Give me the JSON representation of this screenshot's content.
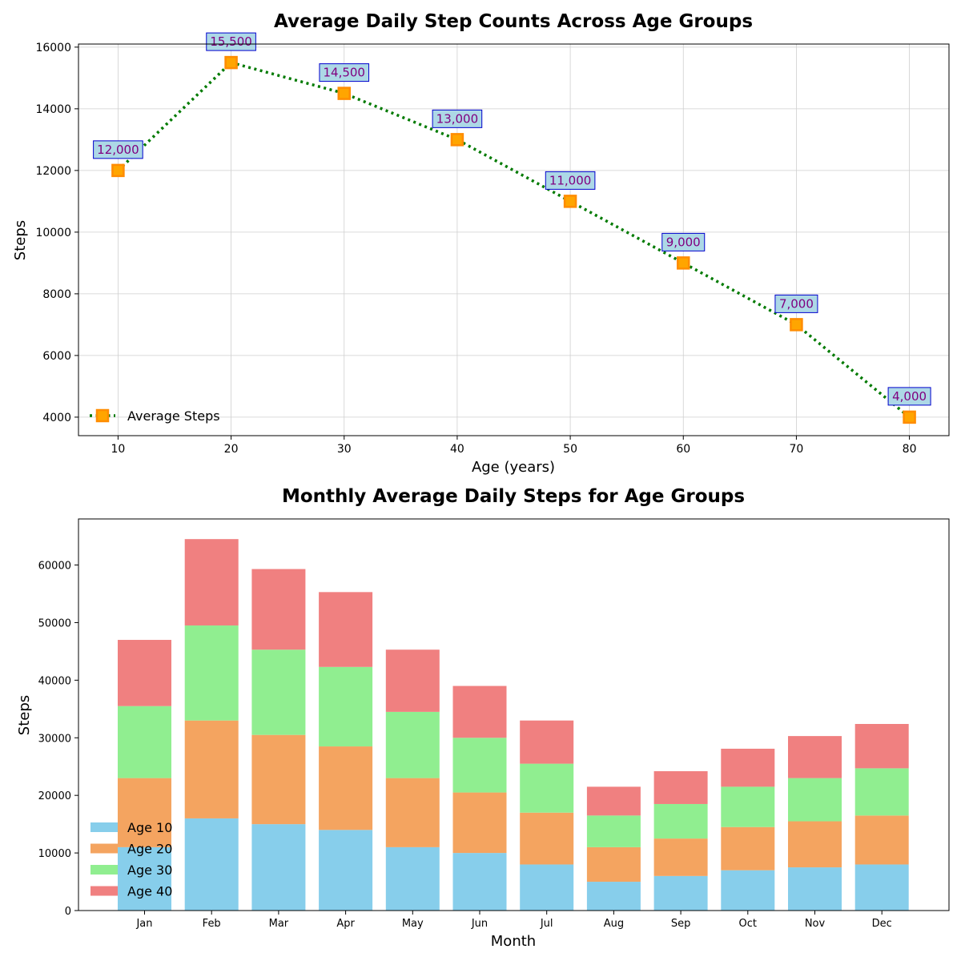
{
  "chart_data": [
    {
      "type": "line",
      "title": "Average Daily Step Counts Across Age Groups",
      "xlabel": "Age (years)",
      "ylabel": "Steps",
      "x": [
        10,
        20,
        30,
        40,
        50,
        60,
        70,
        80
      ],
      "series": [
        {
          "name": "Average Steps",
          "values": [
            12000,
            15500,
            14500,
            13000,
            11000,
            9000,
            7000,
            4000
          ],
          "line_color": "#007a00",
          "marker_color": "#ff8c00"
        }
      ],
      "data_labels": [
        "12,000",
        "15,500",
        "14,500",
        "13,000",
        "11,000",
        "9,000",
        "7,000",
        "4,000"
      ],
      "xlim": [
        6.5,
        83.5
      ],
      "ylim": [
        3400,
        16100
      ],
      "xticks": [
        10,
        20,
        30,
        40,
        50,
        60,
        70,
        80
      ],
      "yticks": [
        4000,
        6000,
        8000,
        10000,
        12000,
        14000,
        16000
      ],
      "grid": true,
      "legend_position": "lower-left",
      "label_box_fill": "#add8e6",
      "label_box_edge": "#0000cd",
      "label_text_color": "#800080"
    },
    {
      "type": "bar",
      "stacked": true,
      "title": "Monthly Average Daily Steps for Age Groups",
      "xlabel": "Month",
      "ylabel": "Steps",
      "categories": [
        "Jan",
        "Feb",
        "Mar",
        "Apr",
        "May",
        "Jun",
        "Jul",
        "Aug",
        "Sep",
        "Oct",
        "Nov",
        "Dec"
      ],
      "series": [
        {
          "name": "Age 10",
          "color": "#87ceeb",
          "values": [
            11000,
            16000,
            15000,
            14000,
            11000,
            10000,
            8000,
            5000,
            6000,
            7000,
            7500,
            8000
          ]
        },
        {
          "name": "Age 20",
          "color": "#f4a460",
          "values": [
            12000,
            17000,
            15500,
            14500,
            12000,
            10500,
            9000,
            6000,
            6500,
            7500,
            8000,
            8500
          ]
        },
        {
          "name": "Age 30",
          "color": "#90ee90",
          "values": [
            12500,
            16500,
            14800,
            13800,
            11500,
            9500,
            8500,
            5500,
            6000,
            7000,
            7500,
            8200
          ]
        },
        {
          "name": "Age 40",
          "color": "#f08080",
          "values": [
            11500,
            15000,
            14000,
            13000,
            10800,
            9000,
            7500,
            5000,
            5700,
            6600,
            7300,
            7700
          ]
        }
      ],
      "ylim": [
        0,
        68000
      ],
      "yticks": [
        0,
        10000,
        20000,
        30000,
        40000,
        50000,
        60000
      ],
      "grid": false,
      "legend_position": "lower-left"
    }
  ]
}
